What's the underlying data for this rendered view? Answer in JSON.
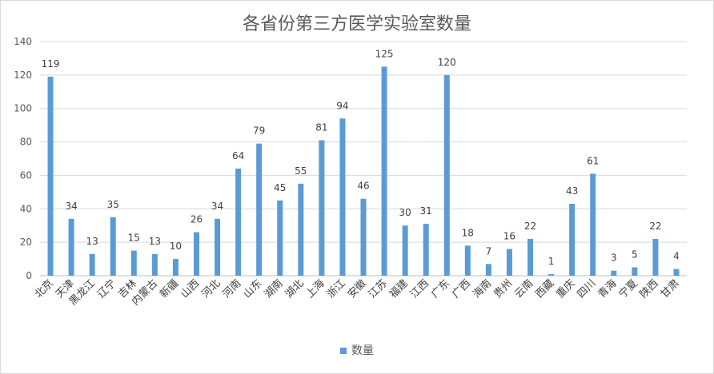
{
  "chart_data": {
    "type": "bar",
    "title": "各省份第三方医学实验室数量",
    "categories": [
      "北京",
      "天津",
      "黑龙江",
      "辽宁",
      "吉林",
      "内蒙古",
      "新疆",
      "山西",
      "河北",
      "河南",
      "山东",
      "湖南",
      "湖北",
      "上海",
      "浙江",
      "安徽",
      "江苏",
      "福建",
      "江西",
      "广东",
      "广西",
      "海南",
      "贵州",
      "云南",
      "西藏",
      "重庆",
      "四川",
      "青海",
      "宁夏",
      "陕西",
      "甘肃"
    ],
    "series": [
      {
        "name": "数量",
        "values": [
          119,
          34,
          13,
          35,
          15,
          13,
          10,
          26,
          34,
          64,
          79,
          45,
          55,
          81,
          94,
          46,
          125,
          30,
          31,
          120,
          18,
          7,
          16,
          22,
          1,
          43,
          61,
          3,
          5,
          22,
          4
        ]
      }
    ],
    "ylim": [
      0,
      140
    ],
    "yticks": [
      0,
      20,
      40,
      60,
      80,
      100,
      120,
      140
    ],
    "grid": true,
    "legend_position": "bottom",
    "bar_color": "#5b9bd5"
  }
}
